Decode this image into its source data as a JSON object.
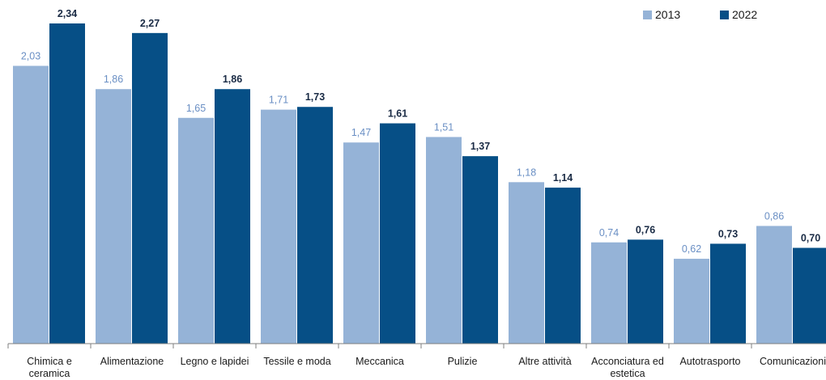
{
  "chart_data": {
    "type": "bar",
    "categories": [
      [
        "Chimica e",
        "ceramica"
      ],
      [
        "Alimentazione"
      ],
      [
        "Legno e lapidei"
      ],
      [
        "Tessile e moda"
      ],
      [
        "Meccanica"
      ],
      [
        "Pulizie"
      ],
      [
        "Altre attività"
      ],
      [
        "Acconciatura ed",
        "estetica"
      ],
      [
        "Autotrasporto"
      ],
      [
        "Comunicazioni"
      ]
    ],
    "series": [
      {
        "name": "2013",
        "color": "#95B3D7",
        "label_color": "#6A8FC4",
        "values": [
          2.03,
          1.86,
          1.65,
          1.71,
          1.47,
          1.51,
          1.18,
          0.74,
          0.62,
          0.86
        ],
        "labels": [
          "2,03",
          "1,86",
          "1,65",
          "1,71",
          "1,47",
          "1,51",
          "1,18",
          "0,74",
          "0,62",
          "0,86"
        ]
      },
      {
        "name": "2022",
        "color": "#064F86",
        "label_color": "#1A2B45",
        "values": [
          2.34,
          2.27,
          1.86,
          1.73,
          1.61,
          1.37,
          1.14,
          0.76,
          0.73,
          0.7
        ],
        "labels": [
          "2,34",
          "2,27",
          "1,86",
          "1,73",
          "1,61",
          "1,37",
          "1,14",
          "0,76",
          "0,73",
          "0,70"
        ]
      }
    ],
    "ylim": [
      0,
      2.34
    ],
    "grid": false,
    "legend_position": "top-right"
  }
}
